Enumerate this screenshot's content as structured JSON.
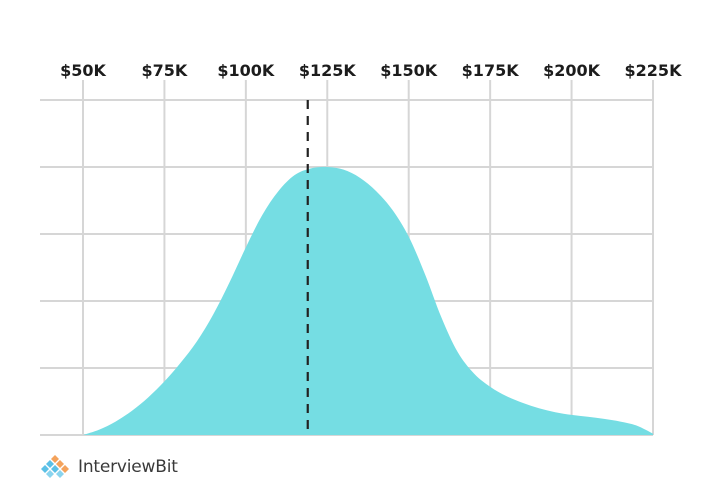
{
  "chart_data": {
    "type": "area",
    "title": "",
    "xlabel": "",
    "ylabel": "",
    "x_tick_labels": [
      "$50K",
      "$75K",
      "$100K",
      "$125K",
      "$150K",
      "$175K",
      "$200K",
      "$225K"
    ],
    "x_ticks": [
      50,
      75,
      100,
      125,
      150,
      175,
      200,
      225
    ],
    "xlim": [
      50,
      225
    ],
    "ylim": [
      0,
      1
    ],
    "grid": true,
    "x_axis_position": "top",
    "marker": {
      "x": 119,
      "style": "dashed",
      "color": "#222222"
    },
    "series": [
      {
        "color": "#75dde3",
        "x": [
          50,
          55,
          60,
          65,
          70,
          75,
          80,
          85,
          90,
          95,
          100,
          105,
          110,
          115,
          120,
          125,
          130,
          135,
          140,
          145,
          150,
          155,
          160,
          165,
          170,
          175,
          180,
          185,
          190,
          195,
          200,
          205,
          210,
          215,
          220,
          225
        ],
        "y": [
          0.0,
          0.02,
          0.05,
          0.09,
          0.14,
          0.2,
          0.27,
          0.35,
          0.45,
          0.57,
          0.7,
          0.82,
          0.91,
          0.97,
          0.995,
          1.0,
          0.99,
          0.96,
          0.91,
          0.84,
          0.74,
          0.6,
          0.44,
          0.31,
          0.23,
          0.18,
          0.145,
          0.12,
          0.1,
          0.085,
          0.075,
          0.068,
          0.06,
          0.05,
          0.035,
          0.005
        ]
      }
    ]
  },
  "logo": {
    "text": "InterviewBit"
  }
}
